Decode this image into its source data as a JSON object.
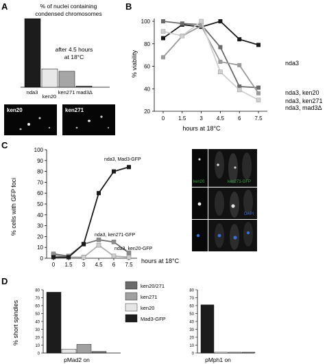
{
  "panels": {
    "A": "A",
    "B": "B",
    "C": "C",
    "D": "D"
  },
  "chart_data": [
    {
      "panel": "A",
      "type": "bar",
      "title": "% of nuclei containing condensed chromosomes",
      "title_lines": [
        "% of nuclei containing",
        "condensed chromosomes"
      ],
      "annotation_lines": [
        "after 4.5 hours",
        "at 18°C"
      ],
      "categories": [
        "nda3",
        "ken20",
        "ken271",
        "mad3Δ"
      ],
      "values": [
        56,
        15,
        13,
        1
      ],
      "bar_colors": [
        "#1c1c1c",
        "#e8e8e8",
        "#a6a6a6",
        "#6e6e6e"
      ],
      "ylim": [
        0,
        60
      ],
      "grid": false
    },
    {
      "panel": "B",
      "type": "line",
      "xlabel": "hours at 18°C",
      "ylabel": "% viability",
      "x": [
        0,
        1.5,
        3,
        4.5,
        6,
        7.5
      ],
      "x_ticks": [
        "0",
        "1.5",
        "3",
        "4.5",
        "6",
        "7.5"
      ],
      "y_ticks": [
        "20",
        "40",
        "60",
        "80",
        "100"
      ],
      "ylim": [
        20,
        100
      ],
      "grid": false,
      "legend": "series labels at right",
      "series": [
        {
          "name": "nda3",
          "values": [
            85,
            97,
            95,
            100,
            84,
            79
          ],
          "color": "#1a1a1a"
        },
        {
          "name": "nda3, ken20",
          "values": [
            100,
            98,
            97,
            77,
            42,
            41
          ],
          "color": "#6a6a6a"
        },
        {
          "name": "nda3, ken271",
          "values": [
            68,
            87,
            96,
            64,
            61,
            36
          ],
          "color": "#9a9a9a"
        },
        {
          "name": "nda3, mad3Δ",
          "values": [
            91,
            87,
            100,
            55,
            39,
            30
          ],
          "color": "#cfcfcf"
        }
      ]
    },
    {
      "panel": "C",
      "type": "line",
      "xlabel": "hours at 18°C",
      "ylabel": "% cells with GFP foci",
      "x": [
        0,
        1.5,
        3,
        4.5,
        6,
        7.5
      ],
      "x_ticks": [
        "0",
        "1.5",
        "3",
        "4.5",
        "6",
        "7.5"
      ],
      "y_ticks": [
        "0",
        "10",
        "20",
        "30",
        "40",
        "50",
        "60",
        "70",
        "80",
        "90",
        "100"
      ],
      "ylim": [
        0,
        100
      ],
      "grid": false,
      "series": [
        {
          "name": "nda3, Mad3-GFP",
          "values": [
            1,
            1,
            13,
            60,
            80,
            84
          ],
          "color": "#1a1a1a"
        },
        {
          "name": "nda3, ken271-GFP",
          "values": [
            4,
            2,
            13,
            17,
            15,
            5
          ],
          "color": "#8c8c8c"
        },
        {
          "name": "nda3, ken20-GFP",
          "values": [
            3,
            1,
            1,
            12,
            2,
            1
          ],
          "color": "#cfcfcf"
        }
      ]
    },
    {
      "panel": "D",
      "type": "bar",
      "ylabel": "% short spindles",
      "categories": [
        "pMad2 on",
        "pMph1 on"
      ],
      "y_ticks": [
        "0",
        "10",
        "20",
        "30",
        "40",
        "50",
        "60",
        "70",
        "80"
      ],
      "ylim": [
        0,
        80
      ],
      "legend": "between panels",
      "series": [
        {
          "name": "Mad3-GFP",
          "values": [
            77,
            61
          ],
          "color": "#1c1c1c"
        },
        {
          "name": "ken20",
          "values": [
            5,
            1
          ],
          "color": "#e6e6e6"
        },
        {
          "name": "ken271",
          "values": [
            11,
            1
          ],
          "color": "#a0a0a0"
        },
        {
          "name": "ken20/271",
          "values": [
            2,
            1
          ],
          "color": "#6a6a6a"
        }
      ],
      "legend_order": [
        "ken20/271",
        "ken271",
        "ken20",
        "Mad3-GFP"
      ]
    }
  ],
  "micrographs": {
    "A": [
      "ken20",
      "ken271"
    ],
    "C": [
      "ken20",
      "ken271-GFP",
      "DAPI"
    ],
    "C_label_colors": {
      "ken20": "#3fa34d",
      "ken271-GFP": "#3fa34d",
      "DAPI": "#3a6fd8"
    }
  }
}
